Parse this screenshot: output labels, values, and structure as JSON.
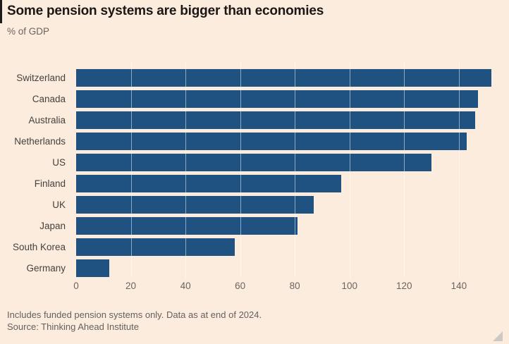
{
  "title": "Some pension systems are bigger than economies",
  "subtitle": "% of GDP",
  "footnote": "Includes funded pension systems only. Data as at end of 2024.",
  "source": "Source: Thinking Ahead Institute",
  "colors": {
    "background": "#fcecde",
    "bar": "#1f5280",
    "title_text": "#1a1714",
    "muted_text": "#6b645e",
    "gridline": "rgba(255,255,255,0.5)"
  },
  "chart_data": {
    "type": "bar",
    "orientation": "horizontal",
    "title": "Some pension systems are bigger than economies",
    "subtitle": "% of GDP",
    "xlabel": "",
    "ylabel": "",
    "categories": [
      "Switzerland",
      "Canada",
      "Australia",
      "Netherlands",
      "US",
      "Finland",
      "UK",
      "Japan",
      "South Korea",
      "Germany"
    ],
    "values": [
      152,
      147,
      146,
      143,
      130,
      97,
      87,
      81,
      58,
      12
    ],
    "unit": "% of GDP",
    "xlim": [
      0,
      155
    ],
    "xticks": [
      0,
      20,
      40,
      60,
      80,
      100,
      120,
      140
    ],
    "grid": true,
    "gridlines_over_bars": true,
    "legend": "none"
  }
}
